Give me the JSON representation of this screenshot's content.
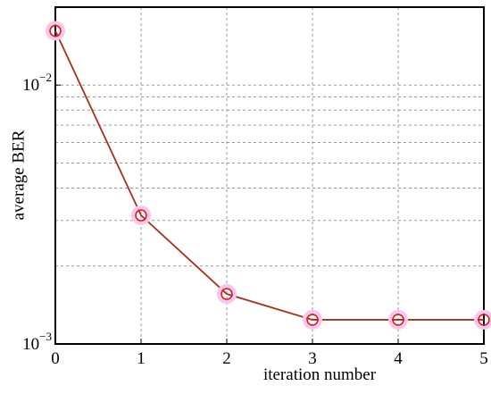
{
  "chart_data": {
    "type": "line",
    "x_label": "iteration number",
    "y_label": "average BER",
    "x": [
      0,
      1,
      2,
      3,
      4,
      5
    ],
    "series": [
      {
        "values": [
          0.0162,
          0.00314,
          0.00156,
          0.00124,
          0.00124,
          0.00124
        ],
        "color": "#a8301c",
        "marker_color": "#e8141a"
      }
    ],
    "xlim": [
      0,
      5
    ],
    "xticks": [
      0,
      1,
      2,
      3,
      4,
      5
    ],
    "ylim": [
      0.001,
      0.02
    ],
    "yscale": "log",
    "yticks": [
      {
        "value": 0.001,
        "label": "10−3"
      },
      {
        "value": 0.01,
        "label": "10−2"
      }
    ],
    "minor_yticks": [
      0.002,
      0.003,
      0.004,
      0.005,
      0.006,
      0.007,
      0.008,
      0.009
    ],
    "grid": true
  }
}
